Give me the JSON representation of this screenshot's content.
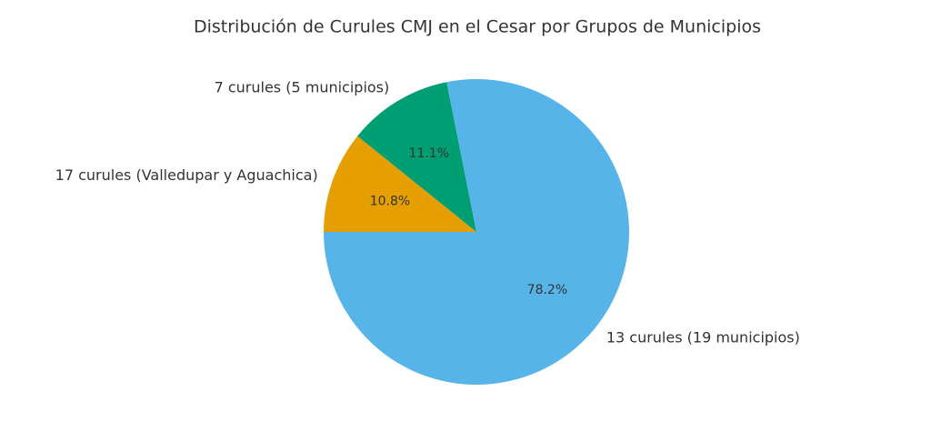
{
  "chart_data": {
    "type": "pie",
    "title": "Distribución de Curules CMJ en el Cesar por Grupos de Municipios",
    "categories": [
      "17 curules (Valledupar y Aguachica)",
      "7 curules (5 municipios)",
      "13 curules (19 municipios)"
    ],
    "values": [
      10.8,
      11.1,
      78.2
    ],
    "value_labels": [
      "10.8%",
      "11.1%",
      "78.2%"
    ],
    "colors": [
      "#E69F00",
      "#009E73",
      "#56B4E9"
    ]
  }
}
